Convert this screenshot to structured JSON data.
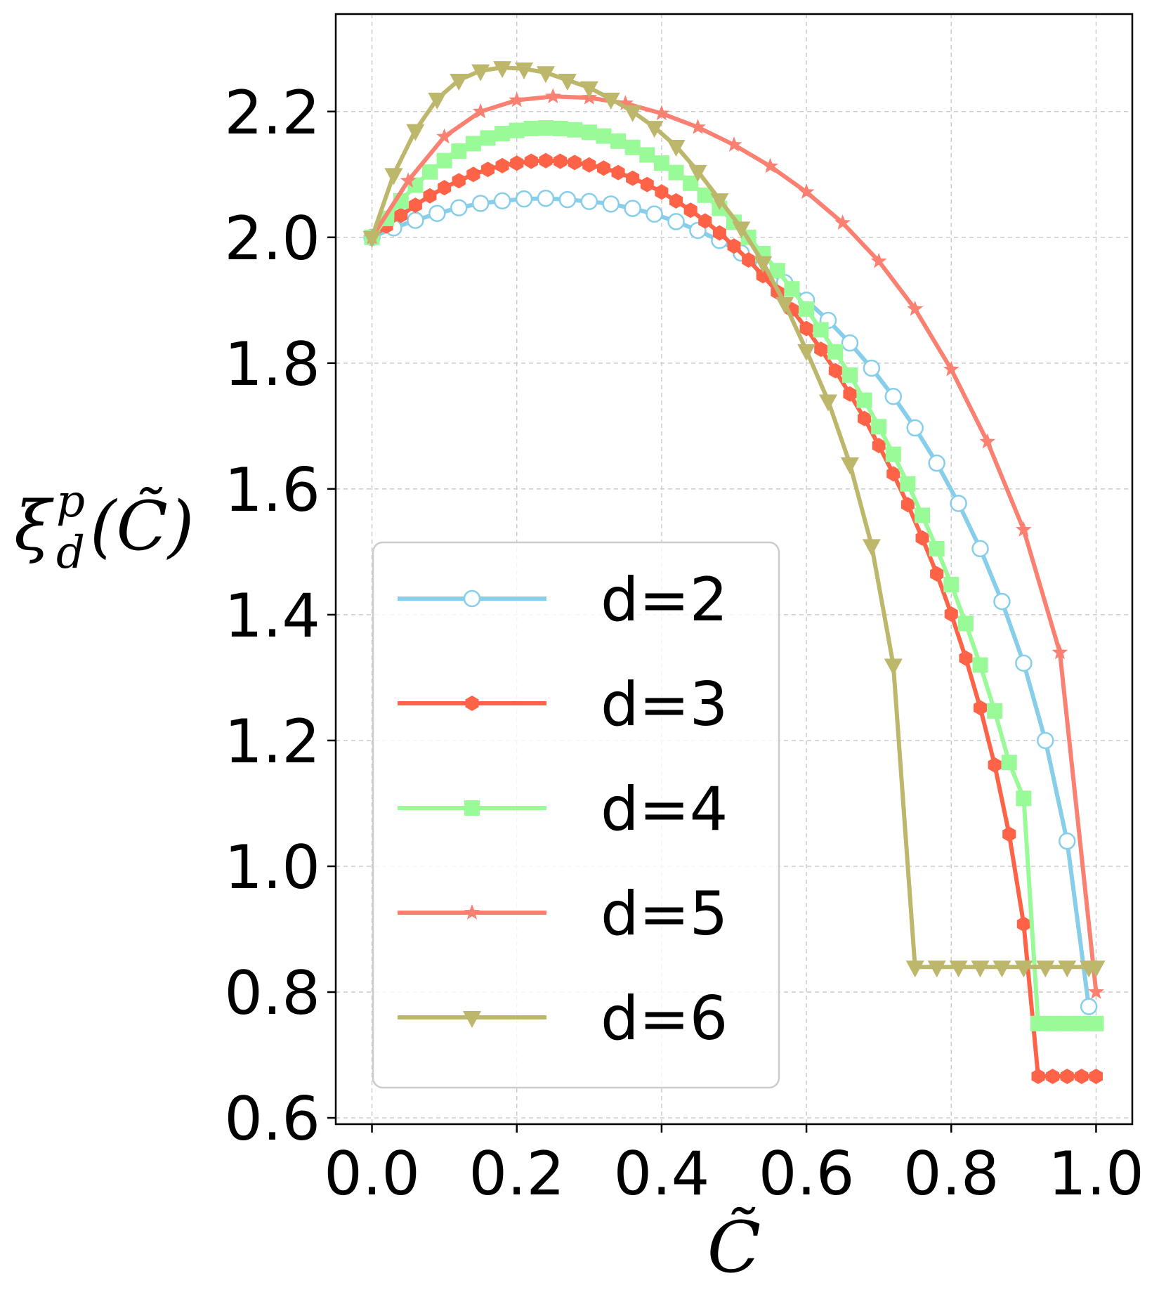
{
  "chart_data": {
    "type": "line",
    "xlabel": "C̃",
    "ylabel": {
      "base": "ξ",
      "sup": "p",
      "sub": "d",
      "arg": "(C̃)"
    },
    "xlim": [
      -0.05,
      1.05
    ],
    "ylim": [
      0.59,
      2.355
    ],
    "xticks": [
      0.0,
      0.2,
      0.4,
      0.6,
      0.8,
      1.0
    ],
    "xtick_labels": [
      "0.0",
      "0.2",
      "0.4",
      "0.6",
      "0.8",
      "1.0"
    ],
    "yticks": [
      0.6,
      0.8,
      1.0,
      1.2,
      1.4,
      1.6,
      1.8,
      2.0,
      2.2
    ],
    "ytick_labels": [
      "0.6",
      "0.8",
      "1.0",
      "1.2",
      "1.4",
      "1.6",
      "1.8",
      "2.0",
      "2.2"
    ],
    "grid": true,
    "legend_position": "lower-left",
    "series": [
      {
        "name": "d=2",
        "color": "#87ceeb",
        "marker": "circle-open",
        "x": [
          0.0,
          0.03,
          0.06,
          0.09,
          0.12,
          0.15,
          0.18,
          0.21,
          0.24,
          0.27,
          0.3,
          0.33,
          0.36,
          0.39,
          0.42,
          0.45,
          0.48,
          0.51,
          0.54,
          0.57,
          0.6,
          0.63,
          0.66,
          0.69,
          0.72,
          0.75,
          0.78,
          0.81,
          0.84,
          0.87,
          0.9,
          0.93,
          0.96,
          0.99
        ],
        "y": [
          2.0,
          2.015,
          2.027,
          2.038,
          2.047,
          2.054,
          2.058,
          2.061,
          2.062,
          2.06,
          2.057,
          2.053,
          2.046,
          2.037,
          2.025,
          2.011,
          1.995,
          1.975,
          1.953,
          1.928,
          1.9,
          1.868,
          1.832,
          1.792,
          1.747,
          1.697,
          1.641,
          1.577,
          1.505,
          1.421,
          1.323,
          1.2,
          1.04,
          0.777
        ]
      },
      {
        "name": "d=3",
        "color": "#ff6347",
        "marker": "hexagon",
        "x": [
          0.0,
          0.02,
          0.04,
          0.06,
          0.08,
          0.1,
          0.12,
          0.14,
          0.16,
          0.18,
          0.2,
          0.22,
          0.24,
          0.26,
          0.28,
          0.3,
          0.32,
          0.34,
          0.36,
          0.38,
          0.4,
          0.42,
          0.44,
          0.46,
          0.48,
          0.5,
          0.52,
          0.54,
          0.56,
          0.58,
          0.6,
          0.62,
          0.64,
          0.66,
          0.68,
          0.7,
          0.72,
          0.74,
          0.76,
          0.78,
          0.8,
          0.82,
          0.84,
          0.86,
          0.88,
          0.9,
          0.92,
          0.94,
          0.96,
          0.98,
          1.0
        ],
        "y": [
          2.0,
          2.018,
          2.035,
          2.051,
          2.066,
          2.079,
          2.09,
          2.1,
          2.108,
          2.114,
          2.118,
          2.121,
          2.122,
          2.121,
          2.119,
          2.115,
          2.11,
          2.103,
          2.094,
          2.084,
          2.072,
          2.058,
          2.043,
          2.026,
          2.007,
          1.986,
          1.964,
          1.939,
          1.913,
          1.885,
          1.855,
          1.822,
          1.788,
          1.751,
          1.712,
          1.669,
          1.624,
          1.575,
          1.522,
          1.465,
          1.401,
          1.331,
          1.252,
          1.161,
          1.051,
          0.908,
          0.666,
          0.666,
          0.666,
          0.666,
          0.666
        ]
      },
      {
        "name": "d=4",
        "color": "#98fb98",
        "marker": "square",
        "x": [
          0.0,
          0.02,
          0.04,
          0.06,
          0.08,
          0.1,
          0.12,
          0.14,
          0.16,
          0.18,
          0.2,
          0.22,
          0.24,
          0.26,
          0.28,
          0.3,
          0.32,
          0.34,
          0.36,
          0.38,
          0.4,
          0.42,
          0.44,
          0.46,
          0.48,
          0.5,
          0.52,
          0.54,
          0.56,
          0.58,
          0.6,
          0.62,
          0.64,
          0.66,
          0.68,
          0.7,
          0.72,
          0.74,
          0.76,
          0.78,
          0.8,
          0.82,
          0.84,
          0.86,
          0.88,
          0.9,
          0.92,
          0.94,
          0.96,
          0.98,
          1.0
        ],
        "y": [
          2.0,
          2.03,
          2.058,
          2.083,
          2.104,
          2.122,
          2.137,
          2.149,
          2.158,
          2.165,
          2.17,
          2.173,
          2.174,
          2.173,
          2.171,
          2.167,
          2.161,
          2.153,
          2.143,
          2.131,
          2.118,
          2.103,
          2.086,
          2.067,
          2.046,
          2.024,
          2.0,
          1.974,
          1.947,
          1.918,
          1.886,
          1.853,
          1.818,
          1.781,
          1.741,
          1.699,
          1.655,
          1.608,
          1.558,
          1.505,
          1.448,
          1.386,
          1.32,
          1.247,
          1.165,
          1.108,
          0.75,
          0.75,
          0.75,
          0.75,
          0.75
        ]
      },
      {
        "name": "d=5",
        "color": "#fa8072",
        "marker": "star",
        "x": [
          0.0,
          0.05,
          0.1,
          0.15,
          0.2,
          0.25,
          0.3,
          0.35,
          0.4,
          0.45,
          0.5,
          0.55,
          0.6,
          0.65,
          0.7,
          0.75,
          0.8,
          0.85,
          0.9,
          0.95,
          1.0
        ],
        "y": [
          2.0,
          2.09,
          2.16,
          2.2,
          2.218,
          2.224,
          2.222,
          2.213,
          2.197,
          2.175,
          2.147,
          2.113,
          2.072,
          2.023,
          1.962,
          1.886,
          1.79,
          1.675,
          1.535,
          1.34,
          0.8
        ]
      },
      {
        "name": "d=6",
        "color": "#bdb76b",
        "marker": "triangle-down",
        "x": [
          0.0,
          0.03,
          0.06,
          0.09,
          0.12,
          0.15,
          0.18,
          0.21,
          0.24,
          0.27,
          0.3,
          0.33,
          0.36,
          0.39,
          0.42,
          0.45,
          0.48,
          0.51,
          0.54,
          0.57,
          0.6,
          0.63,
          0.66,
          0.69,
          0.72,
          0.75,
          0.78,
          0.81,
          0.84,
          0.87,
          0.9,
          0.93,
          0.96,
          0.99,
          1.0
        ],
        "y": [
          2.0,
          2.1,
          2.17,
          2.22,
          2.25,
          2.265,
          2.27,
          2.268,
          2.262,
          2.25,
          2.238,
          2.22,
          2.2,
          2.175,
          2.145,
          2.105,
          2.06,
          2.015,
          1.96,
          1.895,
          1.82,
          1.74,
          1.64,
          1.51,
          1.32,
          0.84,
          0.84,
          0.84,
          0.84,
          0.84,
          0.84,
          0.84,
          0.84,
          0.84,
          0.84
        ]
      }
    ]
  }
}
